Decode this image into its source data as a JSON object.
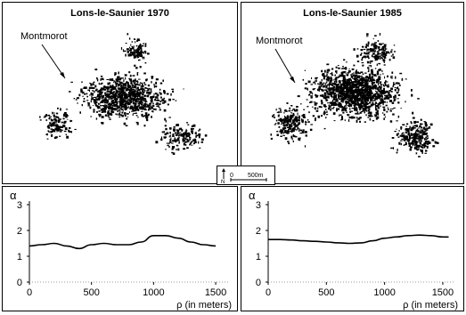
{
  "maps": [
    {
      "title": "Lons-le-Saunier 1970",
      "label": "Montmorot"
    },
    {
      "title": "Lons-le-Saunier 1985",
      "label": "Montmorot"
    }
  ],
  "scale_bar": {
    "north": "N",
    "zero": "0",
    "length": "500m"
  },
  "chart_data": [
    {
      "type": "line",
      "title": "",
      "ylabel": "α",
      "xlabel": "ρ (in meters)",
      "xlim": [
        0,
        1600
      ],
      "ylim": [
        0,
        3
      ],
      "xticks": [
        "0",
        "500",
        "1000",
        "1500"
      ],
      "yticks": [
        "0",
        "1",
        "2",
        "3"
      ],
      "series": [
        {
          "x": [
            0,
            100,
            200,
            300,
            400,
            500,
            600,
            700,
            800,
            900,
            1000,
            1100,
            1200,
            1300,
            1400,
            1500
          ],
          "y": [
            1.4,
            1.45,
            1.5,
            1.4,
            1.3,
            1.45,
            1.5,
            1.45,
            1.45,
            1.55,
            1.8,
            1.8,
            1.7,
            1.55,
            1.45,
            1.4
          ]
        }
      ]
    },
    {
      "type": "line",
      "title": "",
      "ylabel": "α",
      "xlabel": "ρ (in meters)",
      "xlim": [
        0,
        1600
      ],
      "ylim": [
        0,
        3
      ],
      "xticks": [
        "0",
        "500",
        "1000",
        "1500"
      ],
      "yticks": [
        "0",
        "1",
        "2",
        "3"
      ],
      "series": [
        {
          "x": [
            0,
            100,
            200,
            300,
            400,
            500,
            600,
            700,
            800,
            900,
            1000,
            1100,
            1200,
            1300,
            1400,
            1500,
            1550
          ],
          "y": [
            1.65,
            1.65,
            1.63,
            1.6,
            1.58,
            1.55,
            1.52,
            1.5,
            1.52,
            1.6,
            1.7,
            1.75,
            1.8,
            1.82,
            1.8,
            1.75,
            1.75
          ]
        }
      ]
    }
  ]
}
